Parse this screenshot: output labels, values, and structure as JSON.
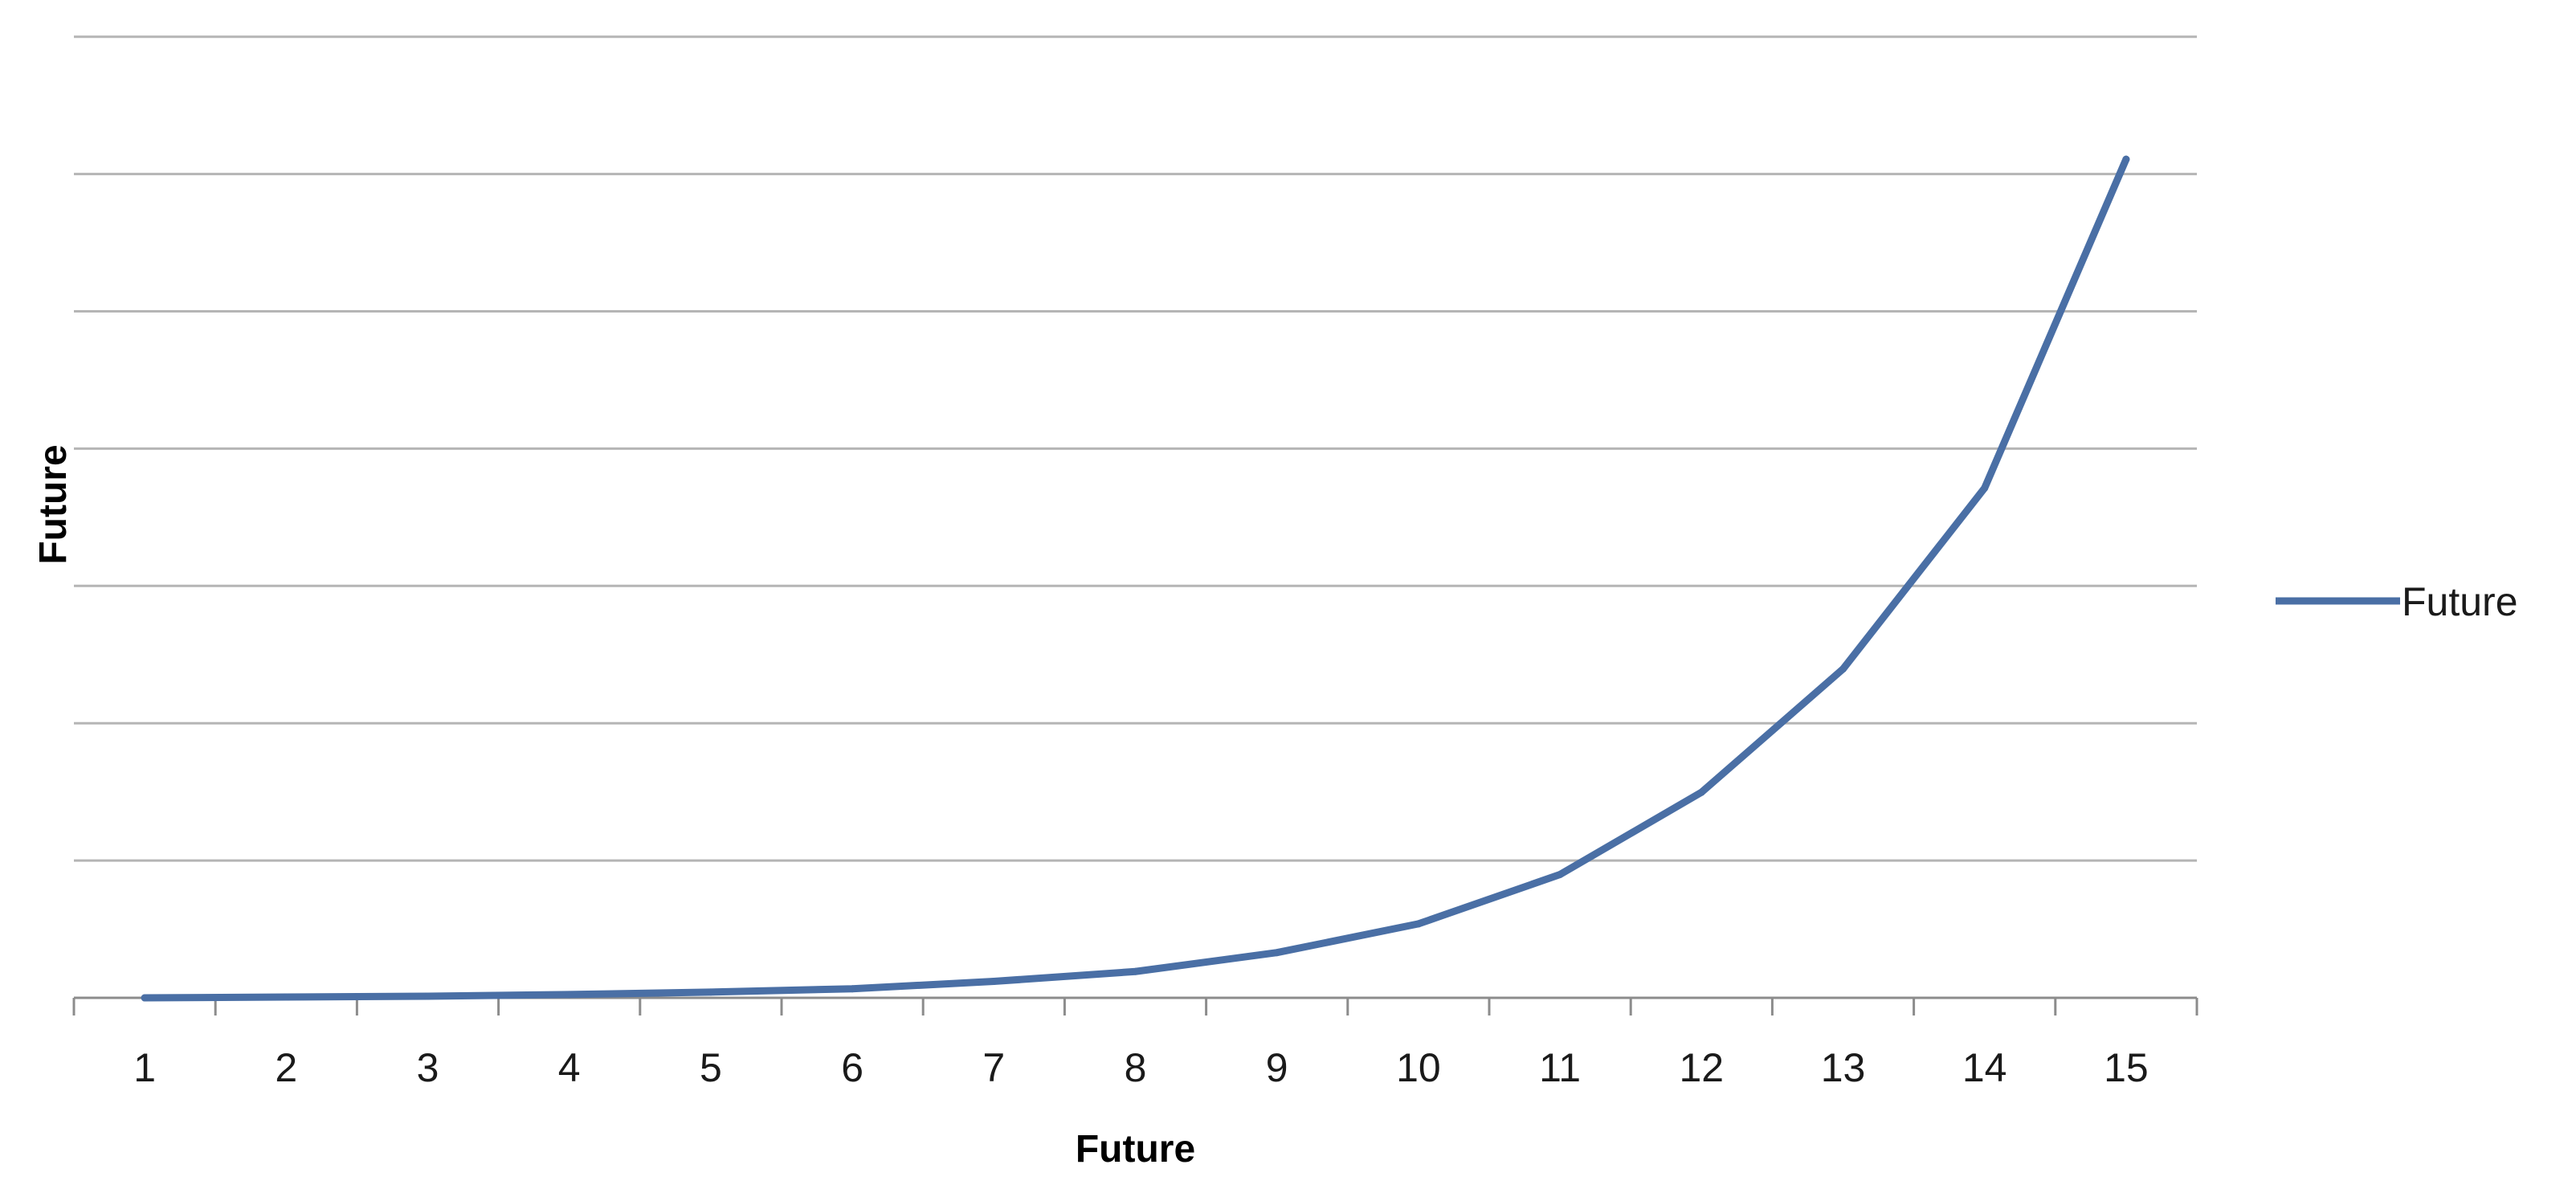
{
  "chart_data": {
    "type": "line",
    "title": "",
    "xlabel": "Future",
    "ylabel": "Future",
    "categories": [
      "1",
      "2",
      "3",
      "4",
      "5",
      "6",
      "7",
      "8",
      "9",
      "10",
      "11",
      "12",
      "13",
      "14",
      "15"
    ],
    "series": [
      {
        "name": "Future",
        "values": [
          0,
          0.1,
          0.2,
          0.4,
          0.7,
          1.1,
          2,
          3.2,
          5.5,
          9,
          15,
          25,
          40,
          62,
          102
        ]
      }
    ],
    "ylim": [
      0,
      120
    ],
    "y_gridline_step": 16.7,
    "y_tick_labels_visible": false,
    "grid": "horizontal",
    "legend_position": "right",
    "colors": {
      "series": "#4a6fa5",
      "grid": "#b5b5b5",
      "axis": "#8c8c8c"
    }
  }
}
